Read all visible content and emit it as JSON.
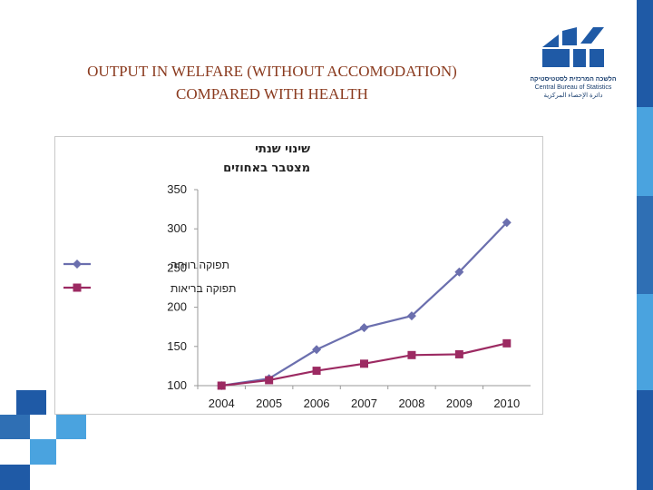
{
  "slide": {
    "title_line1": "OUTPUT IN WELFARE (WITHOUT ACCOMODATION)",
    "title_line2": "COMPARED WITH HEALTH",
    "colors": {
      "title": "#8a3a1e",
      "accent_blue": "#1f5aa6",
      "light_blue": "#4aa3df"
    }
  },
  "logo": {
    "icon": "cbs-logo-icon",
    "line_hebrew": "הלשכה המרכזית לסטטיסטיקה",
    "line_english": "Central Bureau of Statistics",
    "line_arabic": "دائرة الإحصاء المركزية"
  },
  "chart_data": {
    "type": "line",
    "ylabel_line1": "שינוי שנתי",
    "ylabel_line2": "מצטבר באחוזים",
    "x": [
      "2004",
      "2005",
      "2006",
      "2007",
      "2008",
      "2009",
      "2010"
    ],
    "ylim": [
      100,
      350
    ],
    "yticks": [
      100,
      150,
      200,
      250,
      300,
      350
    ],
    "grid": false,
    "legend_position": "left",
    "series": [
      {
        "name": "תפוקה רווחה",
        "color": "#6b6fae",
        "marker": "diamond",
        "values": [
          100,
          109,
          146,
          174,
          189,
          245,
          308
        ]
      },
      {
        "name": "תפוקה בריאות",
        "color": "#9c2a62",
        "marker": "square",
        "values": [
          100,
          107,
          119,
          128,
          139,
          140,
          154
        ]
      }
    ]
  }
}
